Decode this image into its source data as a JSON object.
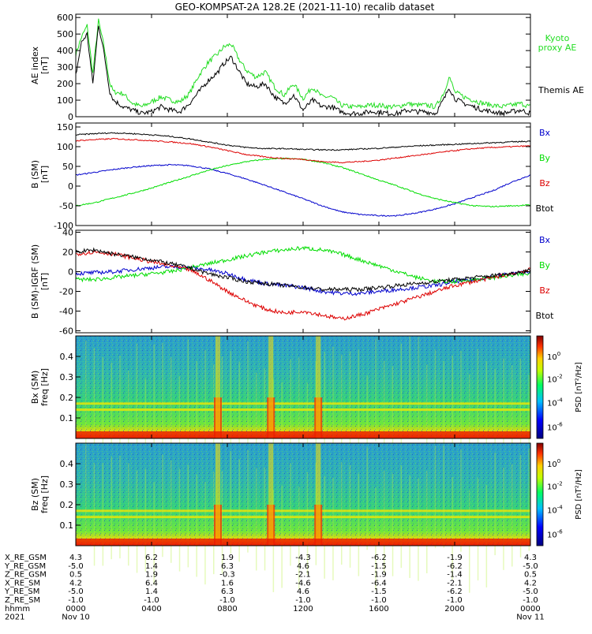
{
  "title": "GEO-KOMPSAT-2A 128.2E (2021-11-10) recalib dataset",
  "colors": {
    "bx": "#0000cc",
    "by": "#00dd00",
    "bz": "#dd0000",
    "btot": "#000000",
    "kyoto": "#22dd22",
    "themis": "#000000"
  },
  "time_ticks_hours": [
    0,
    4,
    8,
    12,
    16,
    20,
    24
  ],
  "chart_data": [
    {
      "type": "line",
      "ylabel": "AE index [nT]",
      "ylim": [
        0,
        620
      ],
      "yticks": [
        0,
        100,
        200,
        300,
        400,
        500,
        600
      ],
      "legend_placement": "right",
      "series": [
        {
          "name": "Kyoto proxy AE",
          "color_key": "kyoto",
          "x": [
            0,
            0.3,
            0.6,
            0.9,
            1.2,
            1.5,
            1.8,
            2.0,
            2.5,
            3.0,
            3.5,
            4.0,
            4.5,
            5.0,
            5.5,
            6.0,
            6.5,
            7.0,
            7.5,
            7.8,
            8.2,
            8.6,
            9.0,
            9.5,
            10.0,
            10.5,
            11.0,
            11.5,
            12.0,
            12.5,
            13.0,
            13.5,
            14.0,
            14.5,
            15.0,
            15.5,
            16.0,
            16.5,
            17.0,
            17.5,
            18.0,
            18.5,
            19.0,
            19.5,
            19.7,
            20.0,
            20.5,
            21.0,
            21.5,
            22.0,
            22.5,
            23.0,
            23.5,
            24.0
          ],
          "y": [
            380,
            480,
            550,
            260,
            580,
            420,
            200,
            150,
            140,
            80,
            60,
            90,
            120,
            100,
            90,
            140,
            250,
            330,
            380,
            420,
            440,
            350,
            280,
            240,
            270,
            180,
            130,
            200,
            110,
            180,
            120,
            120,
            70,
            60,
            60,
            70,
            70,
            60,
            60,
            80,
            70,
            70,
            60,
            160,
            250,
            150,
            120,
            100,
            80,
            70,
            60,
            70,
            80,
            60
          ]
        },
        {
          "name": "Themis AE",
          "color_key": "themis",
          "x": [
            0,
            0.3,
            0.6,
            0.9,
            1.2,
            1.5,
            1.8,
            2.0,
            2.5,
            3.0,
            3.5,
            4.0,
            4.5,
            5.0,
            5.5,
            6.0,
            6.5,
            7.0,
            7.5,
            7.8,
            8.2,
            8.6,
            9.0,
            9.5,
            10.0,
            10.5,
            11.0,
            11.5,
            12.0,
            12.5,
            13.0,
            13.5,
            14.0,
            14.5,
            15.0,
            15.5,
            16.0,
            16.5,
            17.0,
            17.5,
            18.0,
            18.5,
            19.0,
            19.5,
            19.7,
            20.0,
            20.5,
            21.0,
            21.5,
            22.0,
            22.5,
            23.0,
            23.5,
            24.0
          ],
          "y": [
            250,
            450,
            500,
            200,
            560,
            380,
            150,
            100,
            60,
            40,
            20,
            30,
            60,
            40,
            30,
            80,
            150,
            220,
            270,
            320,
            360,
            280,
            200,
            180,
            200,
            120,
            80,
            130,
            40,
            100,
            60,
            60,
            30,
            20,
            20,
            30,
            30,
            20,
            20,
            40,
            30,
            30,
            20,
            120,
            180,
            110,
            80,
            60,
            40,
            30,
            20,
            30,
            40,
            20
          ]
        }
      ]
    },
    {
      "type": "line",
      "ylabel": "B (SM) [nT]",
      "ylim": [
        -100,
        160
      ],
      "yticks": [
        -100,
        -50,
        0,
        50,
        100,
        150
      ],
      "series": [
        {
          "name": "Bx",
          "color_key": "bx",
          "x": [
            0,
            1,
            2,
            3,
            4,
            5,
            6,
            7,
            8,
            9,
            10,
            11,
            12,
            13,
            14,
            15,
            16,
            17,
            18,
            19,
            20,
            21,
            22,
            23,
            24
          ],
          "y": [
            28,
            35,
            42,
            48,
            52,
            54,
            52,
            44,
            32,
            18,
            2,
            -15,
            -32,
            -50,
            -65,
            -72,
            -75,
            -75,
            -68,
            -58,
            -45,
            -28,
            -12,
            10,
            28
          ]
        },
        {
          "name": "By",
          "color_key": "by",
          "x": [
            0,
            1,
            2,
            3,
            4,
            5,
            6,
            7,
            8,
            9,
            10,
            11,
            12,
            13,
            14,
            15,
            16,
            17,
            18,
            19,
            20,
            21,
            22,
            23,
            24
          ],
          "y": [
            -50,
            -42,
            -30,
            -18,
            -5,
            10,
            25,
            40,
            52,
            62,
            68,
            70,
            68,
            60,
            48,
            32,
            15,
            0,
            -18,
            -32,
            -42,
            -50,
            -52,
            -50,
            -48
          ]
        },
        {
          "name": "Bz",
          "color_key": "bz",
          "x": [
            0,
            1,
            2,
            3,
            4,
            5,
            6,
            7,
            8,
            9,
            10,
            11,
            12,
            13,
            14,
            15,
            16,
            17,
            18,
            19,
            20,
            21,
            22,
            23,
            24
          ],
          "y": [
            115,
            118,
            120,
            118,
            115,
            112,
            108,
            100,
            90,
            80,
            74,
            70,
            68,
            62,
            60,
            62,
            66,
            72,
            78,
            84,
            90,
            95,
            98,
            100,
            102
          ]
        },
        {
          "name": "Btot",
          "color_key": "btot",
          "x": [
            0,
            1,
            2,
            3,
            4,
            5,
            6,
            7,
            8,
            9,
            10,
            11,
            12,
            13,
            14,
            15,
            16,
            17,
            18,
            19,
            20,
            21,
            22,
            23,
            24
          ],
          "y": [
            130,
            133,
            135,
            133,
            130,
            126,
            120,
            112,
            104,
            98,
            95,
            95,
            93,
            92,
            92,
            94,
            96,
            99,
            102,
            104,
            106,
            108,
            110,
            112,
            114
          ]
        }
      ]
    },
    {
      "type": "line",
      "ylabel": "B (SM)-IGRF (SM) [nT]",
      "ylim": [
        -62,
        42
      ],
      "yticks": [
        -60,
        -40,
        -20,
        0,
        20,
        40
      ],
      "series": [
        {
          "name": "Bx",
          "color_key": "bx",
          "x": [
            0,
            1,
            2,
            3,
            4,
            5,
            6,
            7,
            8,
            9,
            10,
            11,
            12,
            13,
            14,
            15,
            16,
            17,
            18,
            19,
            20,
            21,
            22,
            23,
            24
          ],
          "y": [
            -2,
            -1,
            0,
            2,
            4,
            5,
            4,
            2,
            -2,
            -8,
            -12,
            -14,
            -16,
            -20,
            -22,
            -22,
            -20,
            -18,
            -16,
            -14,
            -10,
            -8,
            -5,
            -2,
            0
          ]
        },
        {
          "name": "By",
          "color_key": "by",
          "x": [
            0,
            1,
            2,
            3,
            4,
            5,
            6,
            7,
            8,
            9,
            10,
            11,
            12,
            13,
            14,
            15,
            16,
            17,
            18,
            19,
            20,
            21,
            22,
            23,
            24
          ],
          "y": [
            -8,
            -8,
            -6,
            -4,
            -2,
            0,
            4,
            8,
            12,
            16,
            20,
            22,
            24,
            22,
            18,
            12,
            6,
            0,
            -6,
            -10,
            -10,
            -8,
            -6,
            -4,
            -2
          ]
        },
        {
          "name": "Bz",
          "color_key": "bz",
          "x": [
            0,
            1,
            2,
            3,
            4,
            5,
            6,
            7,
            8,
            9,
            10,
            11,
            12,
            13,
            14,
            15,
            16,
            17,
            18,
            19,
            20,
            21,
            22,
            23,
            24
          ],
          "y": [
            18,
            20,
            18,
            14,
            10,
            6,
            2,
            -8,
            -20,
            -30,
            -38,
            -42,
            -40,
            -44,
            -48,
            -44,
            -38,
            -32,
            -26,
            -20,
            -14,
            -10,
            -6,
            -2,
            2
          ]
        },
        {
          "name": "Btot",
          "color_key": "btot",
          "x": [
            0,
            1,
            2,
            3,
            4,
            5,
            6,
            7,
            8,
            9,
            10,
            11,
            12,
            13,
            14,
            15,
            16,
            17,
            18,
            19,
            20,
            21,
            22,
            23,
            24
          ],
          "y": [
            20,
            22,
            18,
            15,
            12,
            8,
            4,
            -2,
            -6,
            -10,
            -12,
            -14,
            -16,
            -18,
            -18,
            -18,
            -16,
            -14,
            -12,
            -10,
            -8,
            -6,
            -4,
            -2,
            2
          ]
        }
      ]
    },
    {
      "type": "heatmap",
      "ylabel": "Bx (SM) freq [Hz]",
      "ylim": [
        0,
        0.5
      ],
      "yticks": [
        0.1,
        0.2,
        0.3,
        0.4
      ],
      "colorbar_label": "PSD [nT^2/Hz]",
      "colorbar_ticks": [
        "10^0",
        "10^-2",
        "10^-4",
        "10^-6"
      ],
      "features": {
        "horizontal_lines_hz": [
          0.14,
          0.17
        ],
        "bursts_hours": [
          7.5,
          10.3,
          12.8
        ]
      }
    },
    {
      "type": "heatmap",
      "ylabel": "Bz (SM) freq [Hz]",
      "ylim": [
        0,
        0.5
      ],
      "yticks": [
        0.1,
        0.2,
        0.3,
        0.4
      ],
      "colorbar_label": "PSD [nT^2/Hz]",
      "colorbar_ticks": [
        "10^0",
        "10^-2",
        "10^-4",
        "10^-6"
      ],
      "features": {
        "horizontal_lines_hz": [
          0.14,
          0.17
        ],
        "bursts_hours": [
          7.5,
          10.3,
          12.8
        ]
      }
    }
  ],
  "legend_labels": {
    "panel1": [
      "Kyoto proxy AE",
      "Themis AE"
    ],
    "panel2": [
      "Bx",
      "By",
      "Bz",
      "Btot"
    ],
    "panel3": [
      "Bx",
      "By",
      "Bz",
      "Btot"
    ]
  },
  "ylabels": {
    "panel1": [
      "AE index",
      "[nT]"
    ],
    "panel2": [
      "B (SM)",
      "[nT]"
    ],
    "panel3": [
      "B (SM)-IGRF (SM)",
      "[nT]"
    ],
    "panel4": [
      "Bx (SM)",
      "freq [Hz]"
    ],
    "panel5": [
      "Bz (SM)",
      "freq [Hz]"
    ],
    "colorbar": "PSD [nT²/Hz]"
  },
  "ephemeris": {
    "row_labels": [
      "X_RE_GSM",
      "Y_RE_GSM",
      "Z_RE_GSM",
      "X_RE_SM",
      "Y_RE_SM",
      "Z_RE_SM",
      "hhmm",
      "2021"
    ],
    "columns": [
      [
        "4.3",
        "-5.0",
        "0.5",
        "4.2",
        "-5.0",
        "-1.0",
        "0000",
        "Nov 10"
      ],
      [
        "6.2",
        "1.4",
        "1.9",
        "6.4",
        "1.4",
        "-1.0",
        "0400",
        ""
      ],
      [
        "1.9",
        "6.3",
        "-0.3",
        "1.6",
        "6.3",
        "-1.0",
        "0800",
        ""
      ],
      [
        "-4.3",
        "4.6",
        "-2.1",
        "-4.6",
        "4.6",
        "-1.0",
        "1200",
        ""
      ],
      [
        "-6.2",
        "-1.5",
        "-1.9",
        "-6.4",
        "-1.5",
        "-1.0",
        "1600",
        ""
      ],
      [
        "-1.9",
        "-6.2",
        "-1.4",
        "-2.1",
        "-6.2",
        "-1.0",
        "2000",
        ""
      ],
      [
        "4.3",
        "-5.0",
        "0.5",
        "4.2",
        "-5.0",
        "-1.0",
        "0000",
        "Nov 11"
      ]
    ]
  }
}
